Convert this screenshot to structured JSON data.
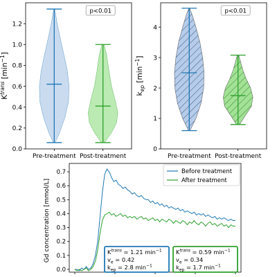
{
  "colors": {
    "blue": "#1f77b4",
    "green": "#2ca02c",
    "blue_fill": "#aec7e8",
    "green_fill": "#98df8a"
  },
  "chart_data": [
    {
      "type": "violin",
      "title": "",
      "ylabel_main": "K",
      "ylabel_sup": "trans",
      "ylabel_unit": " [min",
      "ylabel_exp": "−1",
      "ylabel_close": "]",
      "categories": [
        "Pre-treatment",
        "Post-treatment"
      ],
      "annotation": "p<0.01",
      "ylim": [
        0.0,
        1.4
      ],
      "yticks": [
        "0.0",
        "0.2",
        "0.4",
        "0.6",
        "0.8",
        "1.0",
        "1.2"
      ],
      "hatched": false,
      "series": [
        {
          "min": 0.06,
          "max": 1.34,
          "median": 0.62,
          "profile": [
            [
              0.06,
              0.05
            ],
            [
              0.15,
              0.35
            ],
            [
              0.3,
              0.72
            ],
            [
              0.45,
              0.96
            ],
            [
              0.6,
              1.0
            ],
            [
              0.75,
              0.88
            ],
            [
              0.9,
              0.66
            ],
            [
              1.05,
              0.42
            ],
            [
              1.2,
              0.2
            ],
            [
              1.34,
              0.03
            ]
          ]
        },
        {
          "min": 0.06,
          "max": 1.0,
          "median": 0.41,
          "profile": [
            [
              0.06,
              0.1
            ],
            [
              0.15,
              0.55
            ],
            [
              0.25,
              0.92
            ],
            [
              0.35,
              1.0
            ],
            [
              0.45,
              0.85
            ],
            [
              0.6,
              0.58
            ],
            [
              0.75,
              0.4
            ],
            [
              0.9,
              0.25
            ],
            [
              1.0,
              0.08
            ]
          ]
        }
      ]
    },
    {
      "type": "violin",
      "title": "",
      "ylabel_main": "k",
      "ylabel_sub": "ep",
      "ylabel_unit": " [min",
      "ylabel_exp": "−1",
      "ylabel_close": "]",
      "categories": [
        "Pre-treatment",
        "Post-treatment"
      ],
      "annotation": "p<0.01",
      "ylim": [
        0.0,
        4.8
      ],
      "yticks": [
        "0",
        "1",
        "2",
        "3",
        "4"
      ],
      "hatched": true,
      "series": [
        {
          "min": 0.6,
          "max": 4.62,
          "median": 2.5,
          "profile": [
            [
              0.6,
              0.05
            ],
            [
              1.0,
              0.45
            ],
            [
              1.5,
              0.8
            ],
            [
              2.0,
              0.97
            ],
            [
              2.5,
              1.0
            ],
            [
              3.0,
              0.9
            ],
            [
              3.5,
              0.72
            ],
            [
              4.0,
              0.45
            ],
            [
              4.4,
              0.2
            ],
            [
              4.62,
              0.03
            ]
          ]
        },
        {
          "min": 0.8,
          "max": 3.08,
          "median": 1.75,
          "profile": [
            [
              0.8,
              0.1
            ],
            [
              1.1,
              0.5
            ],
            [
              1.4,
              0.9
            ],
            [
              1.7,
              1.0
            ],
            [
              2.0,
              0.85
            ],
            [
              2.3,
              0.55
            ],
            [
              2.6,
              0.32
            ],
            [
              2.9,
              0.15
            ],
            [
              3.08,
              0.05
            ]
          ]
        }
      ]
    },
    {
      "type": "line",
      "ylabel": "Gd concentration [mmol/L]",
      "xlabel": "",
      "ylim": [
        -0.02,
        0.76
      ],
      "yticks": [
        "0.0",
        "0.1",
        "0.2",
        "0.3",
        "0.4",
        "0.5",
        "0.6",
        "0.7"
      ],
      "legend": "top-right",
      "series": [
        {
          "name": "Before treatment",
          "color": "#1f77b4",
          "values": [
            0.0,
            0.0,
            -0.01,
            0.01,
            0.0,
            0.02,
            0.0,
            0.01,
            0.04,
            0.1,
            0.2,
            0.38,
            0.55,
            0.68,
            0.72,
            0.7,
            0.66,
            0.63,
            0.64,
            0.61,
            0.6,
            0.58,
            0.59,
            0.57,
            0.56,
            0.54,
            0.55,
            0.53,
            0.52,
            0.53,
            0.51,
            0.5,
            0.5,
            0.48,
            0.49,
            0.47,
            0.48,
            0.46,
            0.47,
            0.45,
            0.46,
            0.44,
            0.45,
            0.44,
            0.43,
            0.44,
            0.42,
            0.43,
            0.41,
            0.42,
            0.41,
            0.4,
            0.41,
            0.39,
            0.4,
            0.39,
            0.4,
            0.38,
            0.39,
            0.38,
            0.37,
            0.38,
            0.36,
            0.37,
            0.36,
            0.37,
            0.36,
            0.35,
            0.36,
            0.35,
            0.35
          ]
        },
        {
          "name": "After treatment",
          "color": "#2ca02c",
          "values": [
            0.0,
            -0.01,
            0.0,
            -0.01,
            0.0,
            0.01,
            -0.01,
            0.0,
            0.02,
            0.06,
            0.14,
            0.26,
            0.35,
            0.39,
            0.4,
            0.41,
            0.39,
            0.4,
            0.38,
            0.39,
            0.4,
            0.38,
            0.39,
            0.37,
            0.38,
            0.37,
            0.38,
            0.36,
            0.37,
            0.38,
            0.36,
            0.37,
            0.35,
            0.36,
            0.37,
            0.35,
            0.36,
            0.34,
            0.36,
            0.35,
            0.34,
            0.36,
            0.35,
            0.33,
            0.35,
            0.34,
            0.33,
            0.35,
            0.34,
            0.32,
            0.34,
            0.33,
            0.35,
            0.33,
            0.32,
            0.34,
            0.33,
            0.31,
            0.33,
            0.34,
            0.32,
            0.33,
            0.31,
            0.32,
            0.33,
            0.31,
            0.32,
            0.3,
            0.32,
            0.31,
            0.31
          ]
        }
      ],
      "boxes": [
        {
          "color": "#1f77b4",
          "lines": [
            {
              "main": "K",
              "sup": "trans",
              "rest": " = 1.21 min",
              "exp": "−1"
            },
            {
              "main": "v",
              "sub": "e",
              "rest": " = 0.42",
              "exp": ""
            },
            {
              "main": "k",
              "sub": "ep",
              "rest": " = 2.8 min",
              "exp": "−1"
            }
          ]
        },
        {
          "color": "#2ca02c",
          "lines": [
            {
              "main": "K",
              "sup": "trans",
              "rest": " = 0.59 min",
              "exp": "−1"
            },
            {
              "main": "v",
              "sub": "e",
              "rest": " = 0.34",
              "exp": ""
            },
            {
              "main": "k",
              "sub": "ep",
              "rest": " = 1.7 min",
              "exp": "−1"
            }
          ]
        }
      ]
    }
  ]
}
